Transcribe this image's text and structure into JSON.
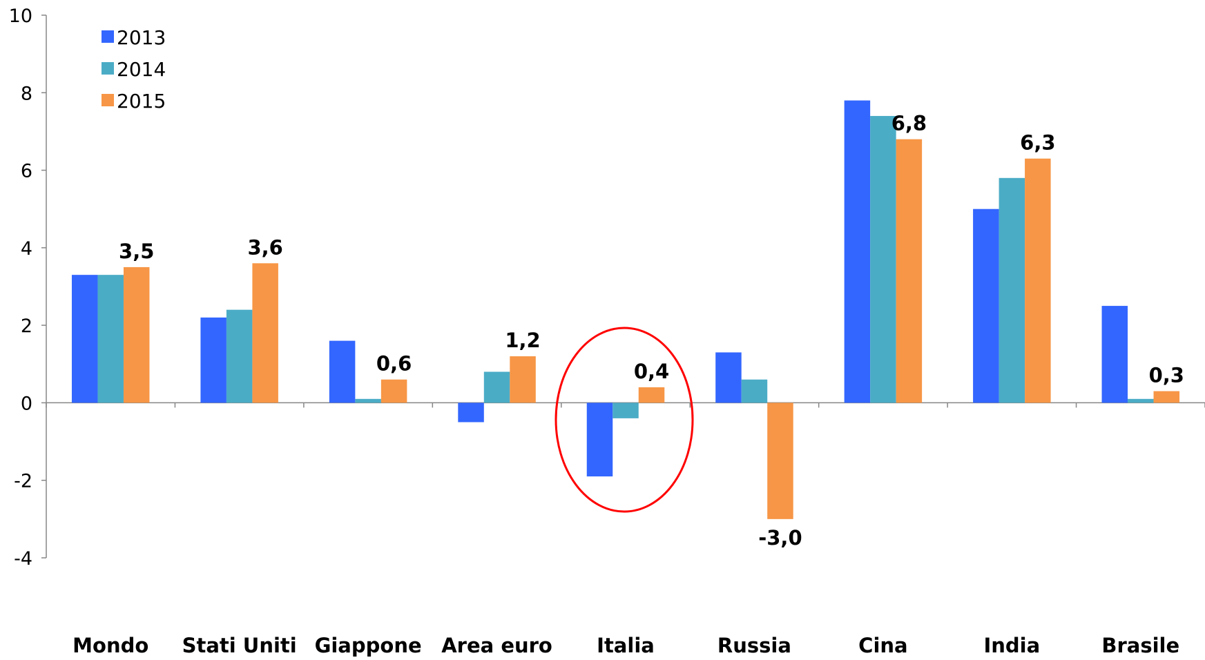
{
  "chart_data": {
    "type": "bar",
    "title": "",
    "xlabel": "",
    "ylabel": "",
    "ylim": [
      -4,
      10
    ],
    "yticks": [
      "-4",
      "-2",
      "0",
      "2",
      "4",
      "6",
      "8",
      "10"
    ],
    "ytick_values": [
      -4,
      -2,
      0,
      2,
      4,
      6,
      8,
      10
    ],
    "grid": false,
    "legend_position": "top-left",
    "categories": [
      "Mondo",
      "Stati Uniti",
      "Giappone",
      "Area euro",
      "Italia",
      "Russia",
      "Cina",
      "India",
      "Brasile"
    ],
    "series": [
      {
        "name": "2013",
        "color": "#3366ff",
        "values": [
          3.3,
          2.2,
          1.6,
          -0.5,
          -1.9,
          1.3,
          7.8,
          5.0,
          2.5
        ]
      },
      {
        "name": "2014",
        "color": "#4bacc6",
        "values": [
          3.3,
          2.4,
          0.1,
          0.8,
          -0.4,
          0.6,
          7.4,
          5.8,
          0.1
        ]
      },
      {
        "name": "2015",
        "color": "#f79646",
        "values": [
          3.5,
          3.6,
          0.6,
          1.2,
          0.4,
          -3.0,
          6.8,
          6.3,
          0.3
        ]
      }
    ],
    "data_labels": {
      "series": "2015",
      "texts": [
        "3,5",
        "3,6",
        "0,6",
        "1,2",
        "0,4",
        "-3,0",
        "6,8",
        "6,3",
        "0,3"
      ]
    },
    "annotations": [
      {
        "type": "ellipse",
        "category": "Italia",
        "color": "#ff0000"
      }
    ]
  }
}
